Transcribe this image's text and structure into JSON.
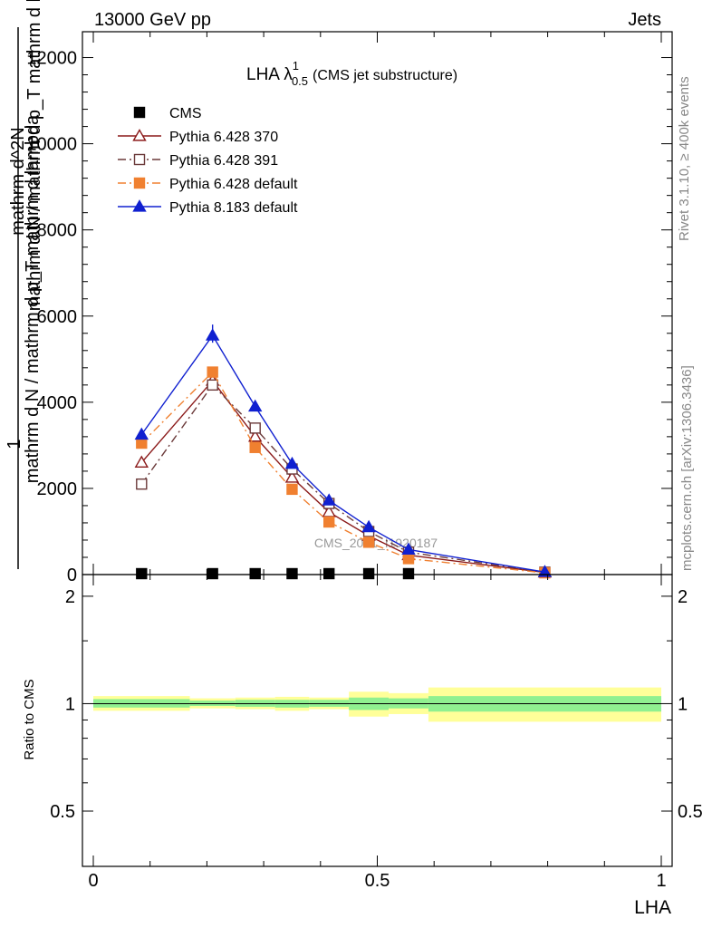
{
  "header": {
    "energy_label": "13000 GeV pp",
    "process_label": "Jets"
  },
  "side_labels": {
    "rivet": "Rivet 3.1.10, ≥ 400k events",
    "mcplots": "mcplots.cern.ch [arXiv:1306.3436]"
  },
  "watermark": "CMS_2021_I1920187",
  "colors": {
    "cms": "#000000",
    "p370": "#8b1a1a",
    "p391": "#6b3a3a",
    "p6def": "#f08030",
    "p8def": "#1020d0",
    "band_inner": "#90f090",
    "band_outer": "#ffff99"
  },
  "chart_data": [
    {
      "type": "line",
      "panel": "main",
      "title_main": "LHA λ",
      "title_sup": "1",
      "title_sub": "0.5",
      "title_note": "(CMS jet substructure)",
      "ylabel_top": "1",
      "ylabel_line1": "mathrm d N / mathrm d p_T mathrm d lambda",
      "ylabel_line2": "mathrm d^2N",
      "ylabel_line3": "mathrm d N / mathrm d p_T mathrm d lambda",
      "xlim": [
        0,
        1
      ],
      "ylim": [
        0,
        12600
      ],
      "yticks": [
        0,
        2000,
        4000,
        6000,
        8000,
        10000,
        12000
      ],
      "ytick_labels": [
        "0",
        "2000",
        "4000",
        "6000",
        "8000",
        "10000",
        "12000"
      ],
      "legend_position": "top-left",
      "series": [
        {
          "name": "CMS",
          "key": "cms",
          "style": "square-filled",
          "x": [
            0.085,
            0.21,
            0.285,
            0.35,
            0.415,
            0.485,
            0.555
          ],
          "values": [
            2,
            2,
            2,
            2,
            2,
            2,
            2
          ]
        },
        {
          "name": "Pythia 6.428 370",
          "key": "p370",
          "style": "triangle-open-solid",
          "x": [
            0.085,
            0.21,
            0.285,
            0.35,
            0.415,
            0.485,
            0.555,
            0.795
          ],
          "values": [
            2600,
            4500,
            3200,
            2250,
            1450,
            900,
            450,
            50
          ]
        },
        {
          "name": "Pythia 6.428 391",
          "key": "p391",
          "style": "square-open-dashdot",
          "x": [
            0.085,
            0.21,
            0.285,
            0.35,
            0.415,
            0.485,
            0.555,
            0.795
          ],
          "values": [
            2100,
            4400,
            3400,
            2450,
            1650,
            1000,
            520,
            55
          ]
        },
        {
          "name": "Pythia 6.428 default",
          "key": "p6def",
          "style": "square-filled-dashdot",
          "x": [
            0.085,
            0.21,
            0.285,
            0.35,
            0.415,
            0.485,
            0.555,
            0.795
          ],
          "values": [
            3050,
            4700,
            2950,
            1980,
            1220,
            750,
            370,
            40
          ]
        },
        {
          "name": "Pythia 8.183 default",
          "key": "p8def",
          "style": "triangle-filled-solid",
          "x": [
            0.085,
            0.21,
            0.285,
            0.35,
            0.415,
            0.485,
            0.555,
            0.795
          ],
          "values": [
            3250,
            5550,
            3900,
            2570,
            1720,
            1100,
            580,
            60
          ]
        }
      ]
    },
    {
      "type": "area",
      "panel": "ratio",
      "ylabel": "Ratio to CMS",
      "xlabel": "LHA",
      "xlim": [
        0,
        1
      ],
      "ylim": [
        0.35,
        2.3
      ],
      "yticks": [
        0.5,
        1,
        2
      ],
      "ytick_labels": [
        "0.5",
        "1",
        "2"
      ],
      "xticks": [
        0,
        0.5,
        1
      ],
      "xtick_labels": [
        "0",
        "0.5",
        "1"
      ],
      "reference": 1,
      "bins": [
        {
          "x0": 0.0,
          "x1": 0.17,
          "inner": [
            0.975,
            1.03
          ],
          "outer": [
            0.955,
            1.05
          ]
        },
        {
          "x0": 0.17,
          "x1": 0.25,
          "inner": [
            0.985,
            1.02
          ],
          "outer": [
            0.97,
            1.035
          ]
        },
        {
          "x0": 0.25,
          "x1": 0.32,
          "inner": [
            0.98,
            1.025
          ],
          "outer": [
            0.965,
            1.04
          ]
        },
        {
          "x0": 0.32,
          "x1": 0.38,
          "inner": [
            0.975,
            1.025
          ],
          "outer": [
            0.955,
            1.045
          ]
        },
        {
          "x0": 0.38,
          "x1": 0.45,
          "inner": [
            0.98,
            1.025
          ],
          "outer": [
            0.965,
            1.04
          ]
        },
        {
          "x0": 0.45,
          "x1": 0.52,
          "inner": [
            0.96,
            1.04
          ],
          "outer": [
            0.92,
            1.08
          ]
        },
        {
          "x0": 0.52,
          "x1": 0.59,
          "inner": [
            0.97,
            1.035
          ],
          "outer": [
            0.935,
            1.07
          ]
        },
        {
          "x0": 0.59,
          "x1": 1.0,
          "inner": [
            0.95,
            1.05
          ],
          "outer": [
            0.89,
            1.11
          ]
        }
      ]
    }
  ]
}
